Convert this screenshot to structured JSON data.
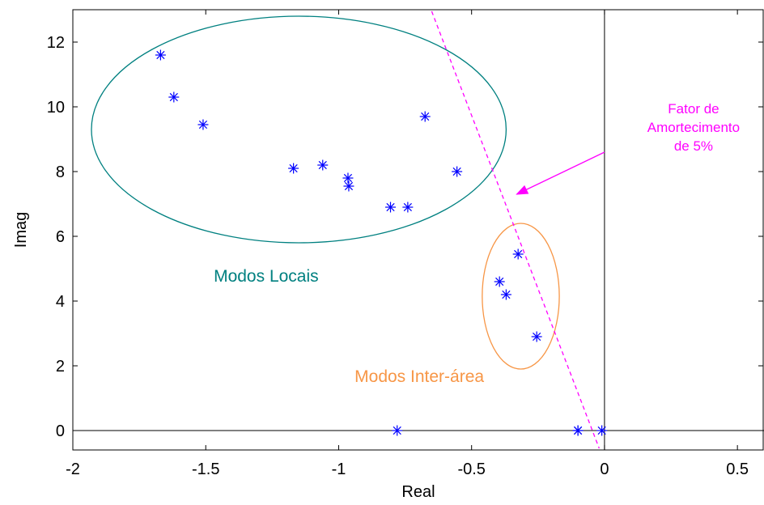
{
  "chart_data": {
    "type": "scatter",
    "title": "",
    "xlabel": "Real",
    "ylabel": "Imag",
    "xlim": [
      -2,
      0.6
    ],
    "ylim": [
      -0.6,
      13
    ],
    "xticks": [
      -2,
      -1.5,
      -1,
      -0.5,
      0,
      0.5
    ],
    "xtick_labels": [
      "-2",
      "-1.5",
      "-1",
      "-0.5",
      "0",
      "0.5"
    ],
    "yticks": [
      0,
      2,
      4,
      6,
      8,
      10,
      12
    ],
    "ytick_labels": [
      "0",
      "2",
      "4",
      "6",
      "8",
      "10",
      "12"
    ],
    "grid": false,
    "marker": "asterisk",
    "series": [
      {
        "color": "#0000ff",
        "points": [
          {
            "x": -1.67,
            "y": 11.6
          },
          {
            "x": -1.62,
            "y": 10.3
          },
          {
            "x": -1.51,
            "y": 9.45
          },
          {
            "x": -1.17,
            "y": 8.1
          },
          {
            "x": -1.06,
            "y": 8.2
          },
          {
            "x": -0.965,
            "y": 7.8
          },
          {
            "x": -0.962,
            "y": 7.55
          },
          {
            "x": -0.805,
            "y": 6.9
          },
          {
            "x": -0.74,
            "y": 6.9
          },
          {
            "x": -0.675,
            "y": 9.7
          },
          {
            "x": -0.555,
            "y": 8.0
          },
          {
            "x": -0.325,
            "y": 5.45
          },
          {
            "x": -0.395,
            "y": 4.6
          },
          {
            "x": -0.37,
            "y": 4.2
          },
          {
            "x": -0.255,
            "y": 2.9
          },
          {
            "x": -0.78,
            "y": 0
          },
          {
            "x": -0.1,
            "y": 0
          },
          {
            "x": -0.1,
            "y": 0
          },
          {
            "x": -0.01,
            "y": 0
          }
        ]
      }
    ],
    "reference_lines": [
      {
        "type": "vertical",
        "x": 0,
        "color": "#000000"
      },
      {
        "type": "horizontal",
        "y": 0,
        "color": "#000000"
      }
    ],
    "damping_line": {
      "color": "#ff00ff",
      "style": "dashed",
      "p1": {
        "x": -0.65,
        "y": 12.95
      },
      "p2": {
        "x": -0.02,
        "y": -0.55
      }
    },
    "ellipses": [
      {
        "cx": -1.15,
        "cy": 9.3,
        "rx": 0.78,
        "ry": 3.5,
        "color": "#008080"
      },
      {
        "cx": -0.315,
        "cy": 4.15,
        "rx": 0.145,
        "ry": 2.25,
        "color": "#f79646"
      }
    ],
    "annotations": [
      {
        "text": "Modos Locais",
        "x": -1.47,
        "y": 4.6,
        "color": "#008080"
      },
      {
        "text": "Modos Inter-área",
        "x": -0.94,
        "y": 1.5,
        "color": "#f79646"
      },
      {
        "lines": [
          "Fator de",
          "Amortecimento",
          "de 5%"
        ],
        "x": 0.335,
        "y": 9.8,
        "color": "#ff00ff"
      }
    ],
    "arrow": {
      "color": "#ff00ff",
      "from": {
        "x": 0.0,
        "y": 8.6
      },
      "to": {
        "x": -0.33,
        "y": 7.3
      }
    }
  }
}
